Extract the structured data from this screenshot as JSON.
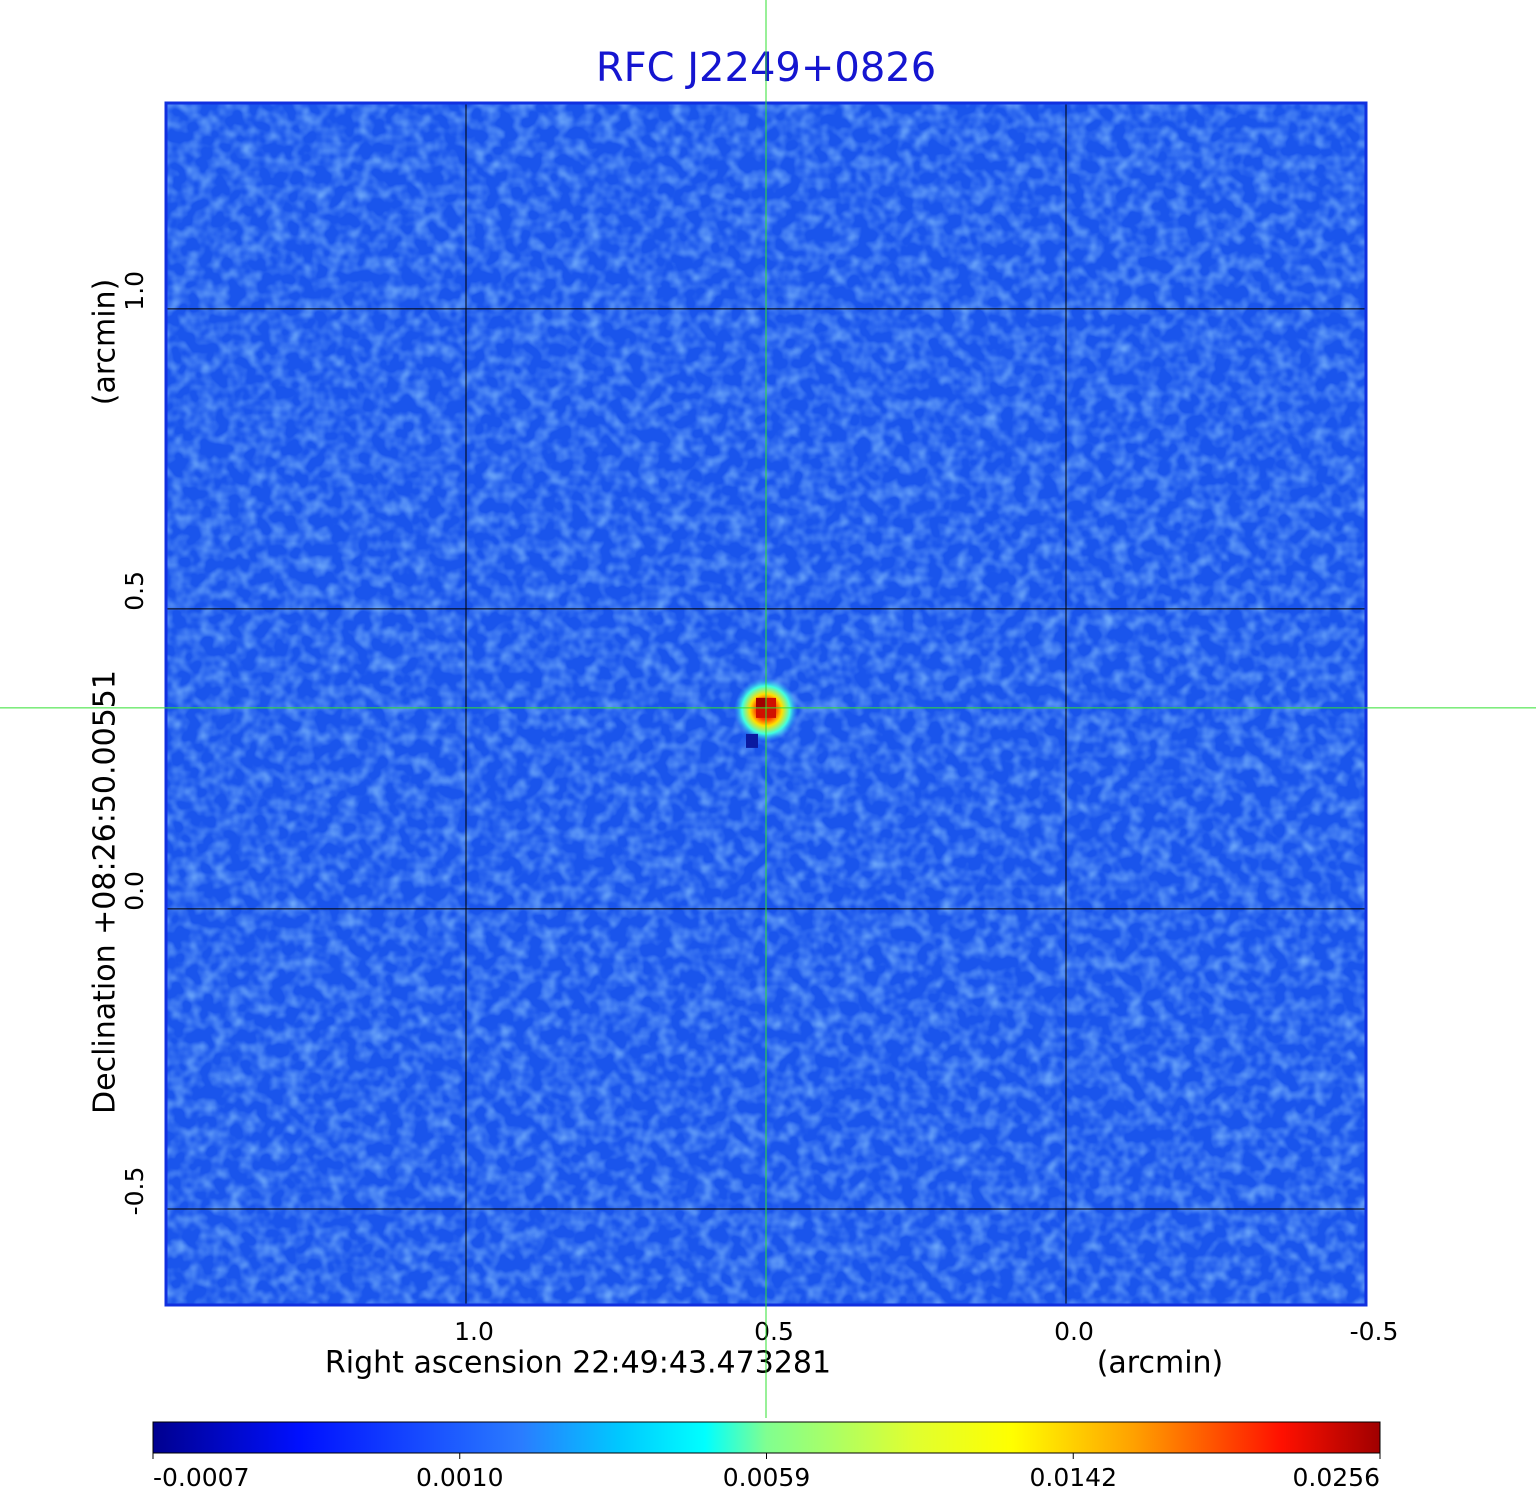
{
  "chart_data": {
    "type": "heatmap",
    "title": "RFC J2249+0826",
    "xlabel": "Right ascension  22:49:43.473281",
    "xunit": "(arcmin)",
    "ylabel": "Declination  +08:26:50.00551",
    "yunit": "(arcmin)",
    "xlim": [
      1.5,
      -0.5
    ],
    "xticks": [
      {
        "value": 1,
        "label": "1.0"
      },
      0.5,
      {
        "value": 0,
        "label": "0.0"
      },
      -0.5
    ],
    "ylim": [
      -0.66,
      1.343
    ],
    "yticks": [
      {
        "value": 1,
        "label": "1.0"
      },
      0.5,
      {
        "value": 0,
        "label": "0.0"
      },
      -0.5
    ],
    "grid": true,
    "crosshair": {
      "x": 0.5,
      "y": 0.335
    },
    "colormap": "jet",
    "colorbar_ticks": [
      -0.0007,
      {
        "value": 0.001,
        "label": "0.0010"
      },
      0.0059,
      0.0142,
      0.0256
    ]
  }
}
